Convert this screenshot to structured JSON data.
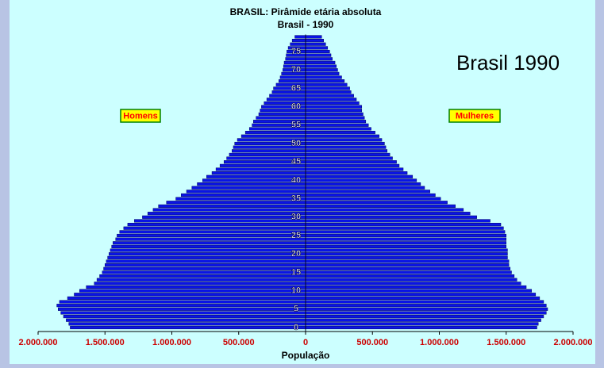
{
  "chart_data": {
    "type": "pyramid",
    "title": "BRASIL: Pirâmide etária absoluta",
    "subtitle": "Brasil - 1990",
    "annotation": "Brasil 1990",
    "xlabel": "População",
    "categories": [
      0,
      null,
      null,
      null,
      null,
      5,
      null,
      null,
      null,
      null,
      10,
      null,
      null,
      null,
      null,
      15,
      null,
      null,
      null,
      null,
      20,
      null,
      null,
      null,
      null,
      25,
      null,
      null,
      null,
      null,
      30,
      null,
      null,
      null,
      null,
      35,
      null,
      null,
      null,
      null,
      40,
      null,
      null,
      null,
      null,
      45,
      null,
      null,
      null,
      null,
      50,
      null,
      null,
      null,
      null,
      55,
      null,
      null,
      null,
      null,
      60,
      null,
      null,
      null,
      null,
      65,
      null,
      null,
      null,
      null,
      70,
      null,
      null,
      null,
      null,
      75,
      null,
      null,
      null,
      null
    ],
    "series": [
      {
        "name": "Homens",
        "side": "left",
        "color": "#0a14e6",
        "values": [
          1760000,
          1770000,
          1790000,
          1810000,
          1830000,
          1850000,
          1860000,
          1840000,
          1780000,
          1730000,
          1690000,
          1640000,
          1580000,
          1560000,
          1540000,
          1520000,
          1510000,
          1500000,
          1490000,
          1480000,
          1470000,
          1460000,
          1450000,
          1440000,
          1420000,
          1410000,
          1390000,
          1360000,
          1330000,
          1280000,
          1220000,
          1180000,
          1140000,
          1100000,
          1040000,
          970000,
          930000,
          890000,
          850000,
          810000,
          770000,
          740000,
          700000,
          670000,
          640000,
          610000,
          590000,
          570000,
          550000,
          540000,
          530000,
          510000,
          480000,
          450000,
          420000,
          400000,
          390000,
          370000,
          350000,
          340000,
          330000,
          310000,
          290000,
          270000,
          250000,
          240000,
          220000,
          200000,
          190000,
          180000,
          170000,
          165000,
          160000,
          150000,
          145000,
          140000,
          130000,
          115000,
          100000,
          80000
        ]
      },
      {
        "name": "Mulheres",
        "side": "right",
        "color": "#0a14e6",
        "values": [
          1730000,
          1740000,
          1760000,
          1780000,
          1800000,
          1810000,
          1800000,
          1780000,
          1750000,
          1720000,
          1690000,
          1650000,
          1610000,
          1580000,
          1560000,
          1540000,
          1530000,
          1520000,
          1520000,
          1510000,
          1510000,
          1510000,
          1500000,
          1500000,
          1500000,
          1500000,
          1490000,
          1480000,
          1460000,
          1380000,
          1280000,
          1230000,
          1180000,
          1120000,
          1060000,
          1010000,
          970000,
          930000,
          890000,
          860000,
          830000,
          800000,
          760000,
          730000,
          700000,
          680000,
          650000,
          630000,
          610000,
          600000,
          590000,
          570000,
          550000,
          520000,
          490000,
          470000,
          450000,
          440000,
          430000,
          420000,
          420000,
          400000,
          380000,
          360000,
          340000,
          330000,
          310000,
          290000,
          270000,
          250000,
          240000,
          230000,
          220000,
          200000,
          190000,
          180000,
          165000,
          150000,
          135000,
          120000
        ]
      }
    ],
    "xlim": [
      -2000000,
      2000000
    ],
    "xticks": [
      {
        "value": -2000000,
        "label": "2.000.000"
      },
      {
        "value": -1500000,
        "label": "1.500.000"
      },
      {
        "value": -1000000,
        "label": "1.000.000"
      },
      {
        "value": -500000,
        "label": "500.000"
      },
      0,
      {
        "value": 500000,
        "label": "500.000"
      },
      {
        "value": 1000000,
        "label": "1.000.000"
      },
      {
        "value": 1500000,
        "label": "1.500.000"
      },
      {
        "value": 2000000,
        "label": "2.000.000"
      }
    ]
  }
}
